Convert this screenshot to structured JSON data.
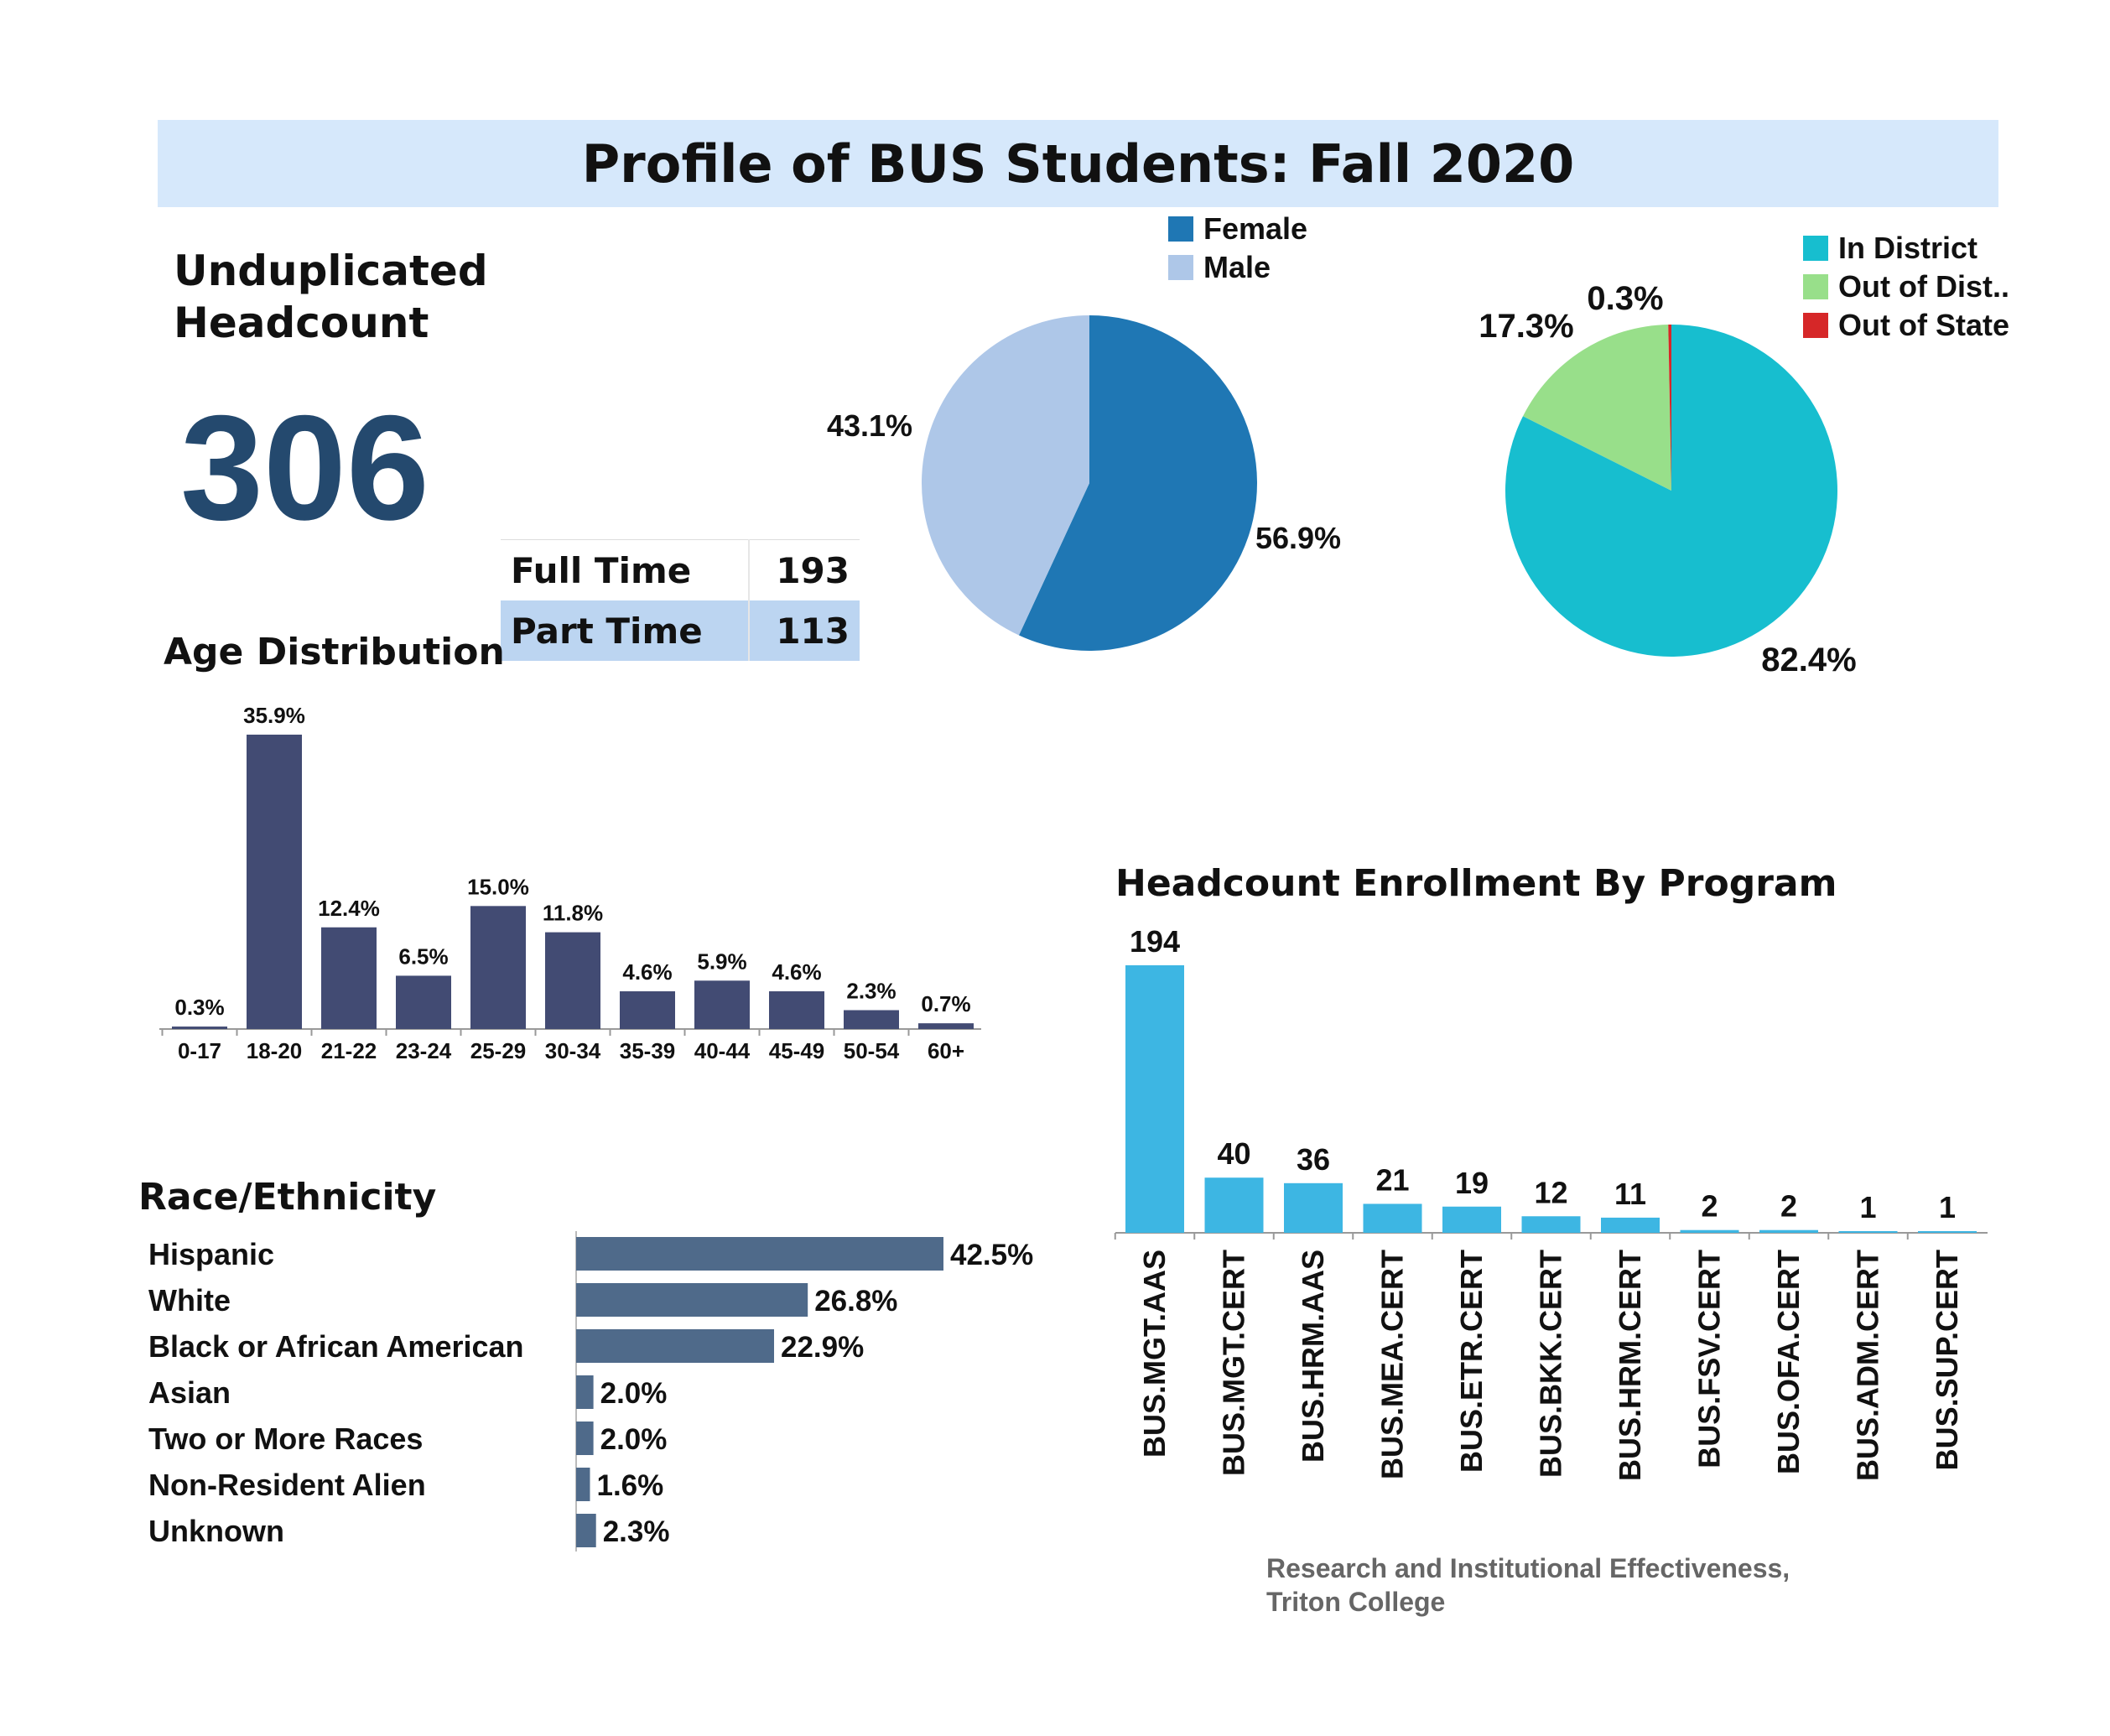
{
  "header": {
    "title": "Profile of BUS Students: Fall 2020"
  },
  "headcount": {
    "label_line1": "Unduplicated",
    "label_line2": "Headcount",
    "value": "306"
  },
  "enrollment_status": {
    "rows": [
      {
        "label": "Full Time",
        "value": "193"
      },
      {
        "label": "Part Time",
        "value": "113"
      }
    ]
  },
  "sections": {
    "age": "Age Distribution",
    "race": "Race/Ethnicity",
    "program": "Headcount Enrollment By Program"
  },
  "footer": {
    "line1": "Research and Institutional Effectiveness,",
    "line2": "Triton College"
  },
  "colors": {
    "female": "#1f77b4",
    "male": "#aec7e8",
    "in_district": "#17becf",
    "out_of_district": "#98df8a",
    "out_of_state": "#d62728",
    "age_bar": "#424b73",
    "race_bar": "#4f6a8a",
    "program_bar": "#3db6e3"
  },
  "chart_data": [
    {
      "type": "pie",
      "legend": [
        "Female",
        "Male"
      ],
      "values": [
        56.9,
        43.1
      ],
      "labels": [
        "56.9%",
        "43.1%"
      ],
      "legend_position": "top"
    },
    {
      "type": "pie",
      "legend": [
        "In District",
        "Out of Dist..",
        "Out of State"
      ],
      "values": [
        82.4,
        17.3,
        0.3
      ],
      "labels": [
        "82.4%",
        "17.3%",
        "0.3%"
      ],
      "legend_position": "top-right"
    },
    {
      "type": "bar",
      "title": "Age Distribution",
      "categories": [
        "0-17",
        "18-20",
        "21-22",
        "23-24",
        "25-29",
        "30-34",
        "35-39",
        "40-44",
        "45-49",
        "50-54",
        "60+"
      ],
      "values": [
        0.3,
        35.9,
        12.4,
        6.5,
        15.0,
        11.8,
        4.6,
        5.9,
        4.6,
        2.3,
        0.7
      ],
      "labels": [
        "0.3%",
        "35.9%",
        "12.4%",
        "6.5%",
        "15.0%",
        "11.8%",
        "4.6%",
        "5.9%",
        "4.6%",
        "2.3%",
        "0.7%"
      ],
      "ylim": [
        0,
        36
      ]
    },
    {
      "type": "bar",
      "orientation": "horizontal",
      "title": "Race/Ethnicity",
      "categories": [
        "Hispanic",
        "White",
        "Black or African American",
        "Asian",
        "Two or More Races",
        "Non-Resident Alien",
        "Unknown"
      ],
      "values": [
        42.5,
        26.8,
        22.9,
        2.0,
        2.0,
        1.6,
        2.3
      ],
      "labels": [
        "42.5%",
        "26.8%",
        "22.9%",
        "2.0%",
        "2.0%",
        "1.6%",
        "2.3%"
      ],
      "xlim": [
        0,
        42.5
      ]
    },
    {
      "type": "bar",
      "title": "Headcount Enrollment By Program",
      "categories": [
        "BUS.MGT.AAS",
        "BUS.MGT.CERT",
        "BUS.HRM.AAS",
        "BUS.MEA.CERT",
        "BUS.ETR.CERT",
        "BUS.BKK.CERT",
        "BUS.HRM.CERT",
        "BUS.FSV.CERT",
        "BUS.OFA.CERT",
        "BUS.ADM.CERT",
        "BUS.SUP.CERT"
      ],
      "values": [
        194,
        40,
        36,
        21,
        19,
        12,
        11,
        2,
        2,
        1,
        1
      ],
      "labels": [
        "194",
        "40",
        "36",
        "21",
        "19",
        "12",
        "11",
        "2",
        "2",
        "1",
        "1"
      ],
      "ylim": [
        0,
        194
      ]
    }
  ]
}
